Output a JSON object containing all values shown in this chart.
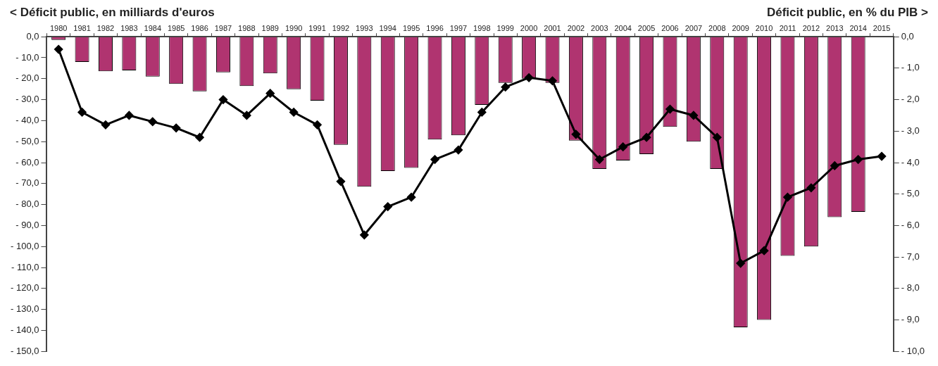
{
  "chart_data": {
    "type": "bar",
    "ylabel": "< Déficit public, en milliards d'euros",
    "y2label": "Déficit public, en % du PIB >",
    "categories": [
      "1980",
      "1981",
      "1982",
      "1983",
      "1984",
      "1985",
      "1986",
      "1987",
      "1988",
      "1989",
      "1990",
      "1991",
      "1992",
      "1993",
      "1994",
      "1995",
      "1996",
      "1997",
      "1998",
      "1999",
      "2000",
      "2001",
      "2002",
      "2003",
      "2004",
      "2005",
      "2006",
      "2007",
      "2008",
      "2009",
      "2010",
      "2011",
      "2012",
      "2013",
      "2014",
      "2015"
    ],
    "series": [
      {
        "color": "#b03470",
        "values": [
          -1.5,
          -12,
          -16.5,
          -16,
          -19,
          -22.5,
          -26,
          -17,
          -23.5,
          -17.5,
          -25,
          -30.5,
          -51.5,
          -71.5,
          -64,
          -62.5,
          -49,
          -47,
          -32.5,
          -22,
          -20,
          -22,
          -49.5,
          -63,
          -59,
          -56,
          -43,
          -50,
          -63,
          -138.5,
          -135,
          -104.5,
          -100,
          -86,
          -83.5,
          null
        ]
      },
      {
        "type": "line",
        "axis": "y2",
        "color": "#000000",
        "marker": "diamond",
        "values": [
          -0.4,
          -2.4,
          -2.8,
          -2.5,
          -2.7,
          -2.9,
          -3.2,
          -2.0,
          -2.5,
          -1.8,
          -2.4,
          -2.8,
          -4.6,
          -6.3,
          -5.4,
          -5.1,
          -3.9,
          -3.6,
          -2.4,
          -1.6,
          -1.3,
          -1.4,
          -3.1,
          -3.9,
          -3.5,
          -3.2,
          -2.3,
          -2.5,
          -3.2,
          -7.2,
          -6.8,
          -5.1,
          -4.8,
          -4.1,
          -3.9,
          -3.8
        ]
      }
    ],
    "ylim": [
      -150,
      0
    ],
    "yticks": [
      {
        "value": 0,
        "label": "0,0"
      },
      {
        "value": -10,
        "label": "- 10,0"
      },
      {
        "value": -20,
        "label": "- 20,0"
      },
      {
        "value": -30,
        "label": "- 30,0"
      },
      {
        "value": -40,
        "label": "- 40,0"
      },
      {
        "value": -50,
        "label": "- 50,0"
      },
      {
        "value": -60,
        "label": "- 60,0"
      },
      {
        "value": -70,
        "label": "- 70,0"
      },
      {
        "value": -80,
        "label": "- 80,0"
      },
      {
        "value": -90,
        "label": "- 90,0"
      },
      {
        "value": -100,
        "label": "- 100,0"
      },
      {
        "value": -110,
        "label": "- 110,0"
      },
      {
        "value": -120,
        "label": "- 120,0"
      },
      {
        "value": -130,
        "label": "- 130,0"
      },
      {
        "value": -140,
        "label": "- 140,0"
      },
      {
        "value": -150,
        "label": "- 150,0"
      }
    ],
    "y2lim": [
      -10,
      0
    ],
    "y2ticks": [
      {
        "value": 0,
        "label": "0,0"
      },
      {
        "value": -1,
        "label": "- 1,0"
      },
      {
        "value": -2,
        "label": "- 2,0"
      },
      {
        "value": -3,
        "label": "- 3,0"
      },
      {
        "value": -4,
        "label": "- 4,0"
      },
      {
        "value": -5,
        "label": "- 5,0"
      },
      {
        "value": -6,
        "label": "- 6,0"
      },
      {
        "value": -7,
        "label": "- 7,0"
      },
      {
        "value": -8,
        "label": "- 8,0"
      },
      {
        "value": -9,
        "label": "- 9,0"
      },
      {
        "value": -10,
        "label": "- 10,0"
      }
    ],
    "grid": false,
    "legend": false
  }
}
